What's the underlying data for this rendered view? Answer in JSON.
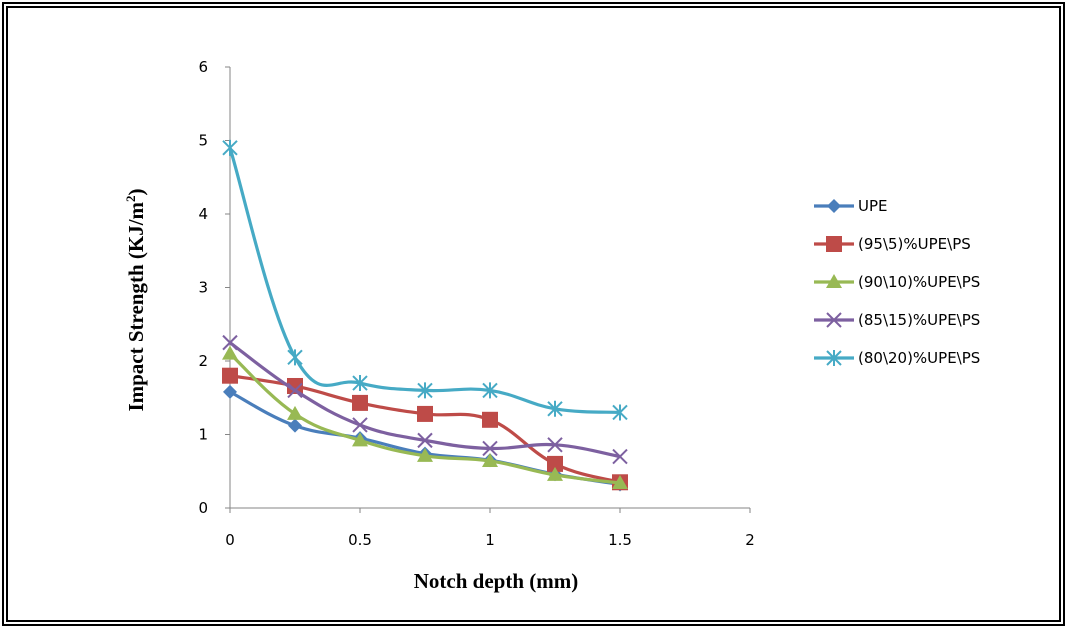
{
  "chart_data": {
    "type": "line",
    "title": "",
    "xlabel": "Notch depth (mm)",
    "ylabel_main": "Impact Strength (KJ/m",
    "ylabel_sup": "2",
    "ylabel_close": ")",
    "xlim": [
      0,
      2
    ],
    "ylim": [
      0,
      6
    ],
    "x_ticks": [
      0,
      0.5,
      1,
      1.5,
      2
    ],
    "x_tick_labels": [
      "0",
      "0.5",
      "1",
      "1.5",
      "2"
    ],
    "y_ticks": [
      0,
      1,
      2,
      3,
      4,
      5,
      6
    ],
    "y_tick_labels": [
      "0",
      "1",
      "2",
      "3",
      "4",
      "5",
      "6"
    ],
    "grid": false,
    "legend_position": "right",
    "x": [
      0,
      0.25,
      0.5,
      0.75,
      1,
      1.25,
      1.5
    ],
    "series": [
      {
        "name": "UPE",
        "color": "#4a7ebb",
        "marker": "diamond",
        "values": [
          1.58,
          1.12,
          0.95,
          0.74,
          0.65,
          0.46,
          0.32
        ]
      },
      {
        "name": "(95\\5)%UPE\\PS",
        "color": "#be4b48",
        "marker": "square",
        "values": [
          1.8,
          1.66,
          1.43,
          1.28,
          1.2,
          0.6,
          0.35
        ]
      },
      {
        "name": "(90\\10)%UPE\\PS",
        "color": "#98b954",
        "marker": "triangle",
        "values": [
          2.1,
          1.28,
          0.92,
          0.71,
          0.64,
          0.45,
          0.34
        ]
      },
      {
        "name": "(85\\15)%UPE\\PS",
        "color": "#7d60a0",
        "marker": "x",
        "values": [
          2.25,
          1.6,
          1.13,
          0.92,
          0.81,
          0.86,
          0.7
        ]
      },
      {
        "name": "(80\\20)%UPE\\PS",
        "color": "#46aac5",
        "marker": "asterisk",
        "values": [
          4.9,
          2.05,
          1.7,
          1.6,
          1.6,
          1.35,
          1.3
        ]
      }
    ]
  }
}
